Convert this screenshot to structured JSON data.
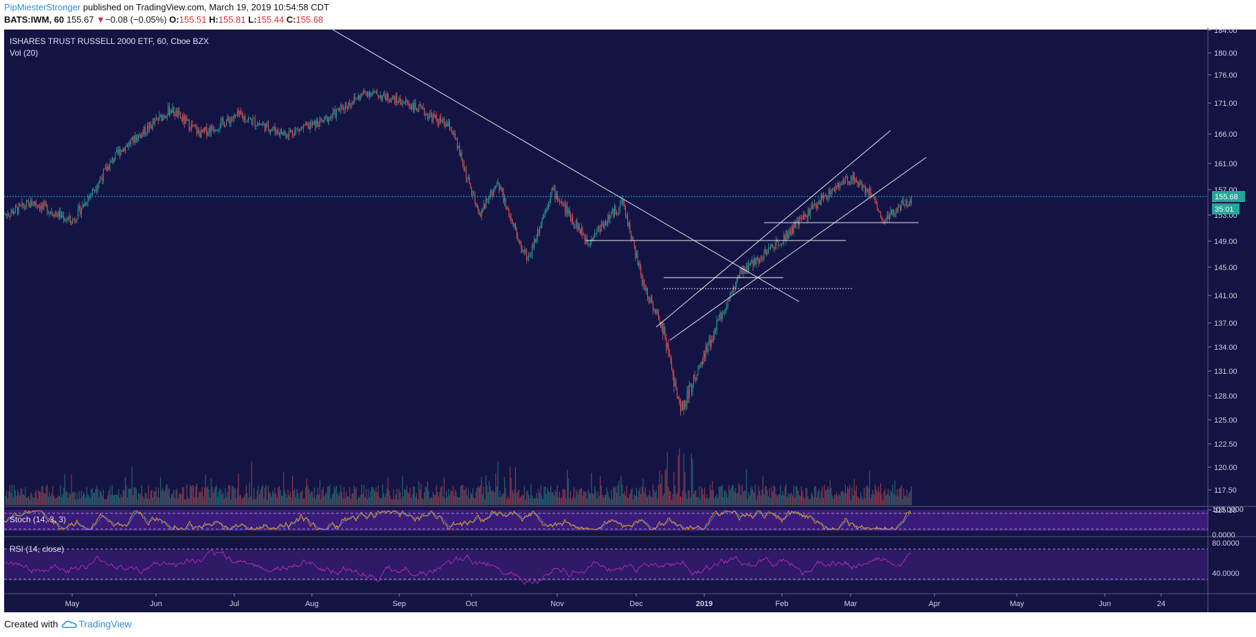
{
  "header": {
    "author": "PipMiesterStronger",
    "published_text": "published on TradingView.com, March 19, 2019 10:54:58 CDT",
    "symbol": "BATS:IWM, 60",
    "last_price": "155.67",
    "change_arrow": "▼",
    "change": "−0.08 (−0.05%)",
    "o_label": "O:",
    "o_value": "155.51",
    "h_label": "H:",
    "h_value": "155.81",
    "l_label": "L:",
    "l_value": "155.44",
    "c_label": "C:",
    "c_value": "155.68"
  },
  "chart": {
    "instrument": "ISHARES TRUST RUSSELL 2000 ETF, 60, Cboe BZX",
    "volume_label": "Vol (20)",
    "stoch_label": "Stoch (14, 3, 3)",
    "rsi_label": "RSI (14, close)",
    "price_badge": "155.68",
    "countdown_badge": "35:01",
    "stoch_ticks": [
      "100.0000",
      "0.0000"
    ],
    "rsi_ticks": [
      "80.0000",
      "40.0000"
    ]
  },
  "chart_data": {
    "type": "line",
    "title": "ISHARES TRUST RUSSELL 2000 ETF, 60, Cboe BZX",
    "y_ticks": [
      "184.00",
      "180.00",
      "176.00",
      "171.00",
      "166.00",
      "161.00",
      "157.00",
      "153.00",
      "149.00",
      "145.00",
      "141.00",
      "137.00",
      "134.00",
      "131.00",
      "128.00",
      "125.00",
      "122.50",
      "120.00",
      "117.50",
      "115.10"
    ],
    "x_ticks": [
      "May",
      "Jun",
      "Jul",
      "Aug",
      "Sep",
      "Oct",
      "Nov",
      "Dec",
      "2019",
      "Feb",
      "Mar",
      "Apr",
      "May",
      "Jun",
      "24"
    ],
    "approx_price_path": {
      "x": [
        "2018-04-20",
        "2018-05-01",
        "2018-05-15",
        "2018-06-01",
        "2018-06-20",
        "2018-07-01",
        "2018-07-15",
        "2018-08-01",
        "2018-08-15",
        "2018-08-31",
        "2018-09-15",
        "2018-10-01",
        "2018-10-11",
        "2018-10-18",
        "2018-10-29",
        "2018-11-07",
        "2018-11-20",
        "2018-12-03",
        "2018-12-10",
        "2018-12-18",
        "2018-12-24",
        "2019-01-02",
        "2019-01-15",
        "2019-02-01",
        "2019-02-15",
        "2019-02-25",
        "2019-03-05",
        "2019-03-08",
        "2019-03-19"
      ],
      "values": [
        153,
        155,
        152,
        163,
        170,
        166,
        169,
        166,
        168,
        173,
        171,
        167,
        153,
        158,
        146,
        157,
        149,
        155,
        143,
        136,
        126,
        133,
        144,
        150,
        156,
        159,
        156,
        152,
        155.68
      ]
    },
    "ylim": [
      115.1,
      184
    ],
    "grid": false,
    "legend": "none"
  },
  "colors": {
    "background": "#141444",
    "up_candle": "#26a69a",
    "down_candle": "#ef5350",
    "trendline": "#ffffff",
    "price_line": "#29b6f6",
    "stoch_k": "#ff9800",
    "stoch_d": "#2196f3",
    "stoch_band": "#3b1b7a",
    "rsi_line": "#c02ac0",
    "rsi_band": "#2e1a66",
    "badge": "#26a69a"
  },
  "footer": {
    "created_with": "Created with",
    "brand": "TradingView"
  }
}
